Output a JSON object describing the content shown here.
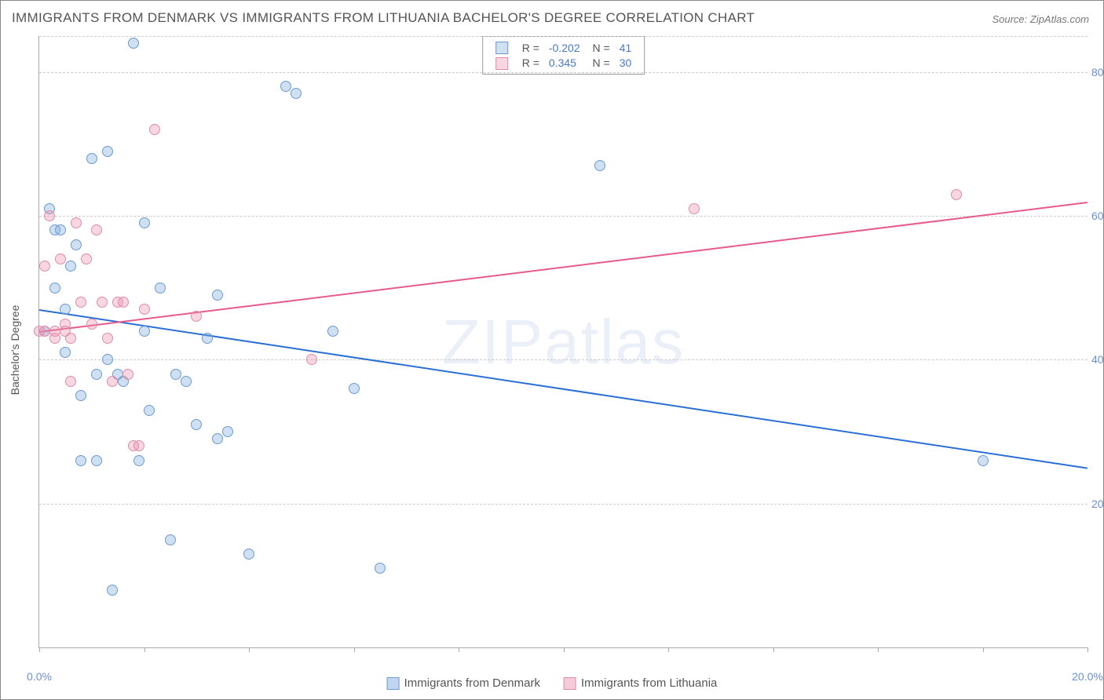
{
  "title": "IMMIGRANTS FROM DENMARK VS IMMIGRANTS FROM LITHUANIA BACHELOR'S DEGREE CORRELATION CHART",
  "source": "Source: ZipAtlas.com",
  "watermark": "ZIPatlas",
  "chart": {
    "type": "scatter",
    "y_axis_label": "Bachelor's Degree",
    "xlim": [
      0,
      20
    ],
    "ylim": [
      0,
      85
    ],
    "x_ticks": [
      0,
      2,
      4,
      6,
      8,
      10,
      12,
      14,
      16,
      18,
      20
    ],
    "x_tick_labels": {
      "0": "0.0%",
      "20": "20.0%"
    },
    "y_gridlines": [
      20,
      40,
      60,
      80
    ],
    "y_tick_labels": {
      "20": "20.0%",
      "40": "40.0%",
      "60": "60.0%",
      "80": "80.0%"
    },
    "background_color": "#ffffff",
    "grid_color": "#cccccc",
    "axis_color": "#aaaaaa",
    "tick_label_color": "#6a8fd4",
    "series": [
      {
        "name": "Immigrants from Denmark",
        "color_fill": "rgba(120,165,220,0.35)",
        "color_stroke": "#6b9bd1",
        "trend_color": "#2a6fd6",
        "R": "-0.202",
        "N": "41",
        "trend": {
          "x1": 0,
          "y1": 47,
          "x2": 20,
          "y2": 25
        },
        "points": [
          [
            0.1,
            44
          ],
          [
            0.2,
            61
          ],
          [
            0.3,
            50
          ],
          [
            0.3,
            58
          ],
          [
            0.4,
            58
          ],
          [
            0.5,
            47
          ],
          [
            0.5,
            41
          ],
          [
            0.6,
            53
          ],
          [
            0.7,
            56
          ],
          [
            0.8,
            35
          ],
          [
            0.8,
            26
          ],
          [
            1.0,
            68
          ],
          [
            1.1,
            26
          ],
          [
            1.1,
            38
          ],
          [
            1.3,
            69
          ],
          [
            1.3,
            40
          ],
          [
            1.4,
            8
          ],
          [
            1.5,
            38
          ],
          [
            1.6,
            37
          ],
          [
            1.8,
            84
          ],
          [
            1.9,
            26
          ],
          [
            2.0,
            44
          ],
          [
            2.0,
            59
          ],
          [
            2.1,
            33
          ],
          [
            2.3,
            50
          ],
          [
            2.5,
            15
          ],
          [
            2.6,
            38
          ],
          [
            2.8,
            37
          ],
          [
            3.0,
            31
          ],
          [
            3.2,
            43
          ],
          [
            3.4,
            29
          ],
          [
            3.4,
            49
          ],
          [
            3.6,
            30
          ],
          [
            4.0,
            13
          ],
          [
            4.7,
            78
          ],
          [
            4.9,
            77
          ],
          [
            5.6,
            44
          ],
          [
            6.0,
            36
          ],
          [
            6.5,
            11
          ],
          [
            10.7,
            67
          ],
          [
            18.0,
            26
          ]
        ]
      },
      {
        "name": "Immigrants from Lithuania",
        "color_fill": "rgba(235,140,170,0.35)",
        "color_stroke": "#e08bab",
        "trend_color": "#e75a8d",
        "R": "0.345",
        "N": "30",
        "trend": {
          "x1": 0,
          "y1": 44,
          "x2": 20,
          "y2": 62
        },
        "points": [
          [
            0.0,
            44
          ],
          [
            0.1,
            44
          ],
          [
            0.1,
            53
          ],
          [
            0.2,
            60
          ],
          [
            0.3,
            44
          ],
          [
            0.3,
            43
          ],
          [
            0.4,
            54
          ],
          [
            0.5,
            45
          ],
          [
            0.5,
            44
          ],
          [
            0.6,
            43
          ],
          [
            0.6,
            37
          ],
          [
            0.7,
            59
          ],
          [
            0.8,
            48
          ],
          [
            0.9,
            54
          ],
          [
            1.0,
            45
          ],
          [
            1.1,
            58
          ],
          [
            1.2,
            48
          ],
          [
            1.3,
            43
          ],
          [
            1.4,
            37
          ],
          [
            1.5,
            48
          ],
          [
            1.6,
            48
          ],
          [
            1.7,
            38
          ],
          [
            1.8,
            28
          ],
          [
            1.9,
            28
          ],
          [
            2.0,
            47
          ],
          [
            2.2,
            72
          ],
          [
            3.0,
            46
          ],
          [
            5.2,
            40
          ],
          [
            12.5,
            61
          ],
          [
            17.5,
            63
          ]
        ]
      }
    ]
  },
  "legend_bottom": [
    {
      "label": "Immigrants from Denmark",
      "fill": "rgba(120,165,220,0.45)",
      "stroke": "#6b9bd1"
    },
    {
      "label": "Immigrants from Lithuania",
      "fill": "rgba(235,140,170,0.45)",
      "stroke": "#e08bab"
    }
  ]
}
